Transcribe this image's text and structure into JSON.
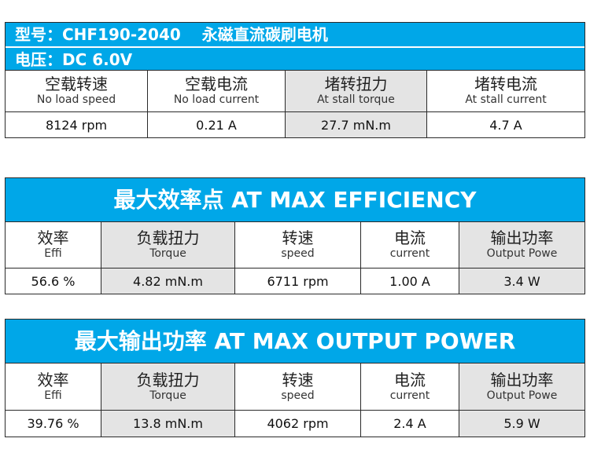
{
  "section1": {
    "model_line": "型号：CHF190-2040　 永磁直流碳刷电机",
    "voltage_line": "电压：DC 6.0V",
    "headers": [
      {
        "cn": "空载转速",
        "en": "No load speed"
      },
      {
        "cn": "空载电流",
        "en": "No load current"
      },
      {
        "cn": "堵转扭力",
        "en": "At stall torque"
      },
      {
        "cn": "堵转电流",
        "en": "At stall current"
      }
    ],
    "values": [
      "8124 rpm",
      "0.21  A",
      "27.7 mN.m",
      "4.7 A"
    ]
  },
  "section2": {
    "title": "最大效率点 AT MAX EFFICIENCY",
    "headers": [
      {
        "cn": "效率",
        "en": "Effi"
      },
      {
        "cn": "负载扭力",
        "en": "Torque"
      },
      {
        "cn": "转速",
        "en": "speed"
      },
      {
        "cn": "电流",
        "en": "current"
      },
      {
        "cn": "输出功率",
        "en": "Output Powe"
      }
    ],
    "values": [
      "56.6 %",
      "4.82 mN.m",
      "6711 rpm",
      "1.00 A",
      "3.4 W"
    ]
  },
  "section3": {
    "title": "最大输出功率 AT MAX OUTPUT POWER",
    "headers": [
      {
        "cn": "效率",
        "en": "Effi"
      },
      {
        "cn": "负载扭力",
        "en": "Torque"
      },
      {
        "cn": "转速",
        "en": "speed"
      },
      {
        "cn": "电流",
        "en": "current"
      },
      {
        "cn": "输出功率",
        "en": "Output Powe"
      }
    ],
    "values": [
      "39.76 %",
      "13.8 mN.m",
      "4062 rpm",
      "2.4 A",
      "5.9 W"
    ]
  }
}
